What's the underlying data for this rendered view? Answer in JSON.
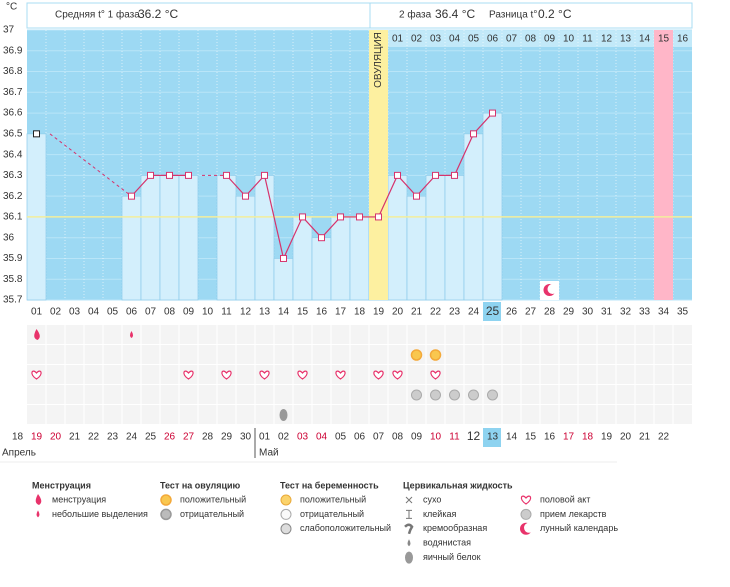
{
  "chart_data": {
    "type": "line",
    "y_unit": "°C",
    "header": {
      "phase1_label": "Средняя t° 1 фаза",
      "phase1_value": "36.2 °C",
      "phase2_label": "2 фаза",
      "phase2_value": "36.4 °C",
      "diff_label": "Разница t°",
      "diff_value": "0.2 °C"
    },
    "ovulation_label": "ОВУЛЯЦИЯ",
    "ovulation_index": 18,
    "today_index": 24,
    "pink_index": 33,
    "categories": [
      "01",
      "02",
      "03",
      "04",
      "05",
      "06",
      "07",
      "08",
      "09",
      "10",
      "11",
      "12",
      "13",
      "14",
      "15",
      "16",
      "17",
      "18",
      "19",
      "20",
      "21",
      "22",
      "23",
      "24",
      "25",
      "26",
      "27",
      "28",
      "29",
      "30",
      "31",
      "32",
      "33",
      "34",
      "35"
    ],
    "phase2_days": [
      null,
      null,
      null,
      null,
      null,
      null,
      null,
      null,
      null,
      null,
      null,
      null,
      null,
      null,
      null,
      null,
      null,
      null,
      null,
      "01",
      "02",
      "03",
      "04",
      "05",
      "06",
      "07",
      "08",
      "09",
      "10",
      "11",
      "12",
      "13",
      "14",
      "15",
      "16"
    ],
    "dates": [
      "18",
      "19",
      "20",
      "21",
      "22",
      "23",
      "24",
      "25",
      "26",
      "27",
      "28",
      "29",
      "30",
      "01",
      "02",
      "03",
      "04",
      "05",
      "06",
      "07",
      "08",
      "09",
      "10",
      "11",
      "12",
      "13",
      "14",
      "15",
      "16",
      "17",
      "18",
      "19",
      "20",
      "21",
      "22"
    ],
    "weekends": [
      1,
      2,
      8,
      9,
      15,
      16,
      22,
      23,
      29,
      30
    ],
    "weekend_color": "#cc0033",
    "months": [
      {
        "label": "Апрель",
        "index": 0
      },
      {
        "label": "Май",
        "index": 13
      }
    ],
    "series": [
      {
        "name": "t°",
        "color": "#d6336c",
        "values": [
          36.5,
          null,
          null,
          null,
          null,
          36.2,
          36.3,
          36.3,
          36.3,
          null,
          36.3,
          36.2,
          36.3,
          35.9,
          36.1,
          36.0,
          36.1,
          36.1,
          36.1,
          36.3,
          36.2,
          36.3,
          36.3,
          36.5,
          36.6,
          null,
          null,
          null,
          null,
          null,
          null,
          null,
          null,
          null,
          null
        ]
      }
    ],
    "cover_line": 36.1,
    "ylim": [
      35.7,
      37
    ],
    "yticks": [
      37,
      36.9,
      36.8,
      36.7,
      36.6,
      36.5,
      36.4,
      36.3,
      36.2,
      36.1,
      36,
      35.9,
      35.8,
      35.7
    ],
    "events": {
      "menstruation": [
        0
      ],
      "spotting": [
        5
      ],
      "ovulation_positive": [
        20,
        21
      ],
      "intercourse": [
        0,
        8,
        10,
        12,
        14,
        16,
        18,
        19,
        21
      ],
      "medication": [
        20,
        21,
        22,
        23,
        24
      ],
      "egg_white": [
        13
      ],
      "lunar": [
        27
      ]
    },
    "legend": [
      {
        "title": "Менструация",
        "items": [
          "менструация",
          "небольшие выделения"
        ]
      },
      {
        "title": "Тест на овуляцию",
        "items": [
          "положительный",
          "отрицательный"
        ]
      },
      {
        "title": "Тест на беременность",
        "items": [
          "положительный",
          "отрицательный",
          "слабоположительный"
        ]
      },
      {
        "title": "Цервикальная жидкость",
        "items": [
          "сухо",
          "клейкая",
          "кремообразная",
          "водянистая",
          "яичный белок"
        ]
      },
      {
        "items": [
          "половой акт",
          "прием лекарств",
          "лунный календарь"
        ]
      }
    ]
  }
}
